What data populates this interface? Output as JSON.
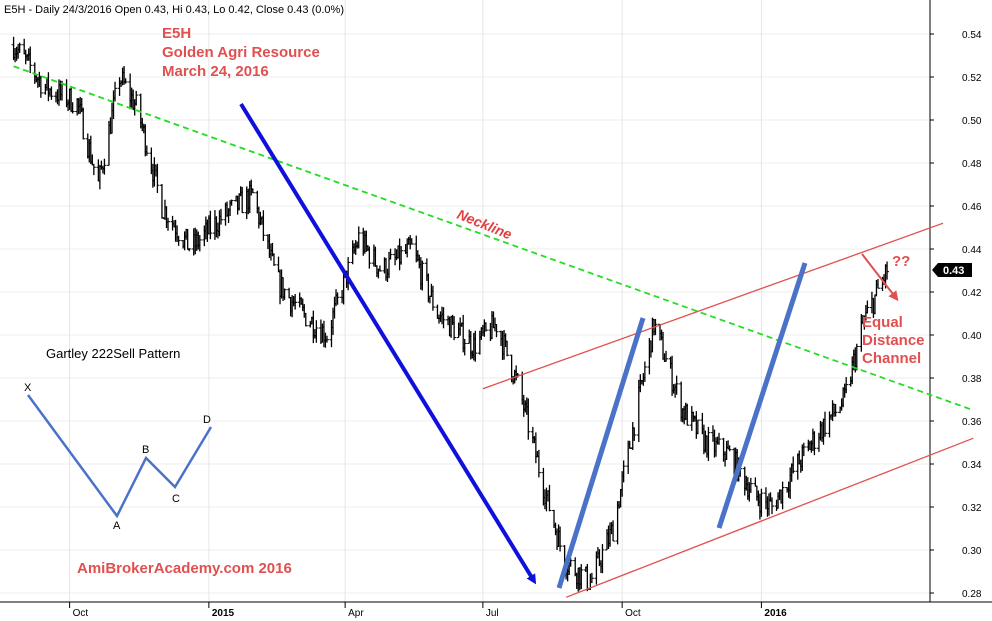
{
  "header": "E5H - Daily 24/3/2016 Open 0.43, Hi 0.43, Lo 0.42, Close 0.43 (0.0%)",
  "title_lines": [
    "E5H",
    "Golden Agri Resource",
    "March 24, 2016"
  ],
  "annotations": {
    "neckline": "Neckline",
    "question": "??",
    "channel": [
      "Equal",
      "Distance",
      "Channel"
    ],
    "pattern_title": "Gartley 222Sell Pattern",
    "watermark": "AmiBrokerAcademy.com  2016"
  },
  "pattern_points": [
    "X",
    "A",
    "B",
    "C",
    "D"
  ],
  "last_price_tag": "0.43",
  "colors": {
    "price": "#000000",
    "neckline": "#22dd22",
    "channel": "#e05050",
    "down_arrow": "#1010dd",
    "up_arrows": "#4a72c8",
    "annotation": "#e05050",
    "grid": "#e0e0e0"
  },
  "chart_data": {
    "type": "line",
    "subtype": "ohlc-bars",
    "symbol": "E5H",
    "title": "Golden Agri Resource",
    "y_axis_side": "right",
    "ylim": [
      0.27,
      0.555
    ],
    "y_ticks": [
      "0.54",
      "0.52",
      "0.50",
      "0.48",
      "0.46",
      "0.44",
      "0.42",
      "0.40",
      "0.38",
      "0.36",
      "0.34",
      "0.32",
      "0.30",
      "0.28"
    ],
    "x_ticks": [
      "Oct",
      "2015",
      "Apr",
      "Jul",
      "Oct",
      "2016"
    ],
    "x_tick_years": [
      "2015",
      "2016"
    ],
    "series": [
      {
        "x": [
          "2014-08-25",
          "2014-09-15",
          "2014-10-06",
          "2014-10-20",
          "2014-11-03",
          "2014-11-15",
          "2014-12-01",
          "2014-12-20",
          "2015-01-10",
          "2015-01-30",
          "2015-02-15",
          "2015-03-01",
          "2015-03-20",
          "2015-04-10",
          "2015-04-25",
          "2015-05-15",
          "2015-06-01",
          "2015-06-25",
          "2015-07-10",
          "2015-07-25",
          "2015-08-10",
          "2015-08-24",
          "2015-09-10",
          "2015-09-25",
          "2015-10-12",
          "2015-10-22",
          "2015-11-10",
          "2015-11-25",
          "2015-12-10",
          "2015-12-28",
          "2016-01-08",
          "2016-01-25",
          "2016-02-08",
          "2016-02-25",
          "2016-03-08",
          "2016-03-24"
        ],
        "y": [
          0.535,
          0.515,
          0.508,
          0.47,
          0.52,
          0.505,
          0.46,
          0.44,
          0.455,
          0.465,
          0.425,
          0.412,
          0.4,
          0.445,
          0.43,
          0.44,
          0.41,
          0.395,
          0.405,
          0.375,
          0.33,
          0.295,
          0.285,
          0.31,
          0.37,
          0.405,
          0.365,
          0.35,
          0.345,
          0.325,
          0.32,
          0.34,
          0.355,
          0.37,
          0.405,
          0.43
        ]
      }
    ],
    "lines": [
      {
        "name": "Neckline",
        "points": [
          {
            "x": "2014-08-25",
            "y": 0.525
          },
          {
            "x": "2016-05-20",
            "y": 0.365
          }
        ]
      },
      {
        "name": "Channel upper",
        "points": [
          {
            "x": "2015-07-01",
            "y": 0.375
          },
          {
            "x": "2016-04-30",
            "y": 0.452
          }
        ]
      },
      {
        "name": "Channel lower",
        "points": [
          {
            "x": "2015-08-25",
            "y": 0.278
          },
          {
            "x": "2016-05-20",
            "y": 0.352
          }
        ]
      }
    ]
  }
}
